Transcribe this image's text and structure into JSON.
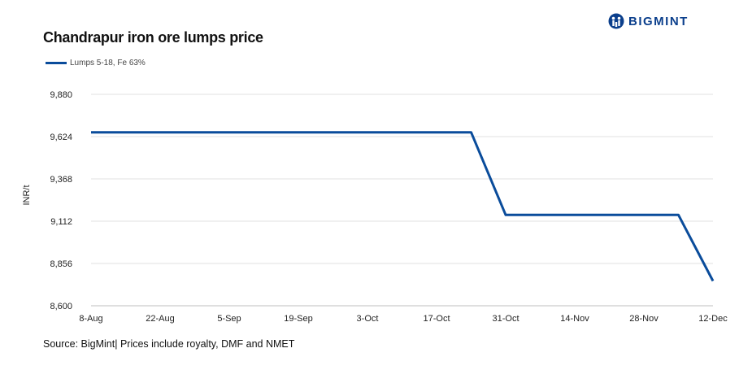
{
  "brand": {
    "name": "BIGMINT",
    "color": "#0b3f8c",
    "icon": "bigmint-logo-icon"
  },
  "chart_data": {
    "type": "line",
    "title": "Chandrapur iron ore lumps price",
    "ylabel": "INR/t",
    "xlabel": "",
    "categories": [
      "8-Aug",
      "15-Aug",
      "22-Aug",
      "29-Aug",
      "5-Sep",
      "12-Sep",
      "19-Sep",
      "26-Sep",
      "3-Oct",
      "10-Oct",
      "17-Oct",
      "24-Oct",
      "31-Oct",
      "7-Nov",
      "14-Nov",
      "21-Nov",
      "28-Nov",
      "5-Dec",
      "12-Dec"
    ],
    "x_tick_labels": [
      "8-Aug",
      "22-Aug",
      "5-Sep",
      "19-Sep",
      "3-Oct",
      "17-Oct",
      "31-Oct",
      "14-Nov",
      "28-Nov",
      "12-Dec"
    ],
    "series": [
      {
        "name": "Lumps 5-18, Fe 63%",
        "color": "#0a4c9b",
        "values": [
          9650,
          9650,
          9650,
          9650,
          9650,
          9650,
          9650,
          9650,
          9650,
          9650,
          9650,
          9650,
          9150,
          9150,
          9150,
          9150,
          9150,
          9150,
          8750
        ]
      }
    ],
    "ylim": [
      8600,
      9880
    ],
    "y_ticks": [
      "8,600",
      "8,856",
      "9,112",
      "9,368",
      "9,624",
      "9,880"
    ],
    "grid": true,
    "legend_position": "top-left"
  },
  "footer": {
    "source": "Source: BigMint| Prices include royalty, DMF and NMET"
  }
}
